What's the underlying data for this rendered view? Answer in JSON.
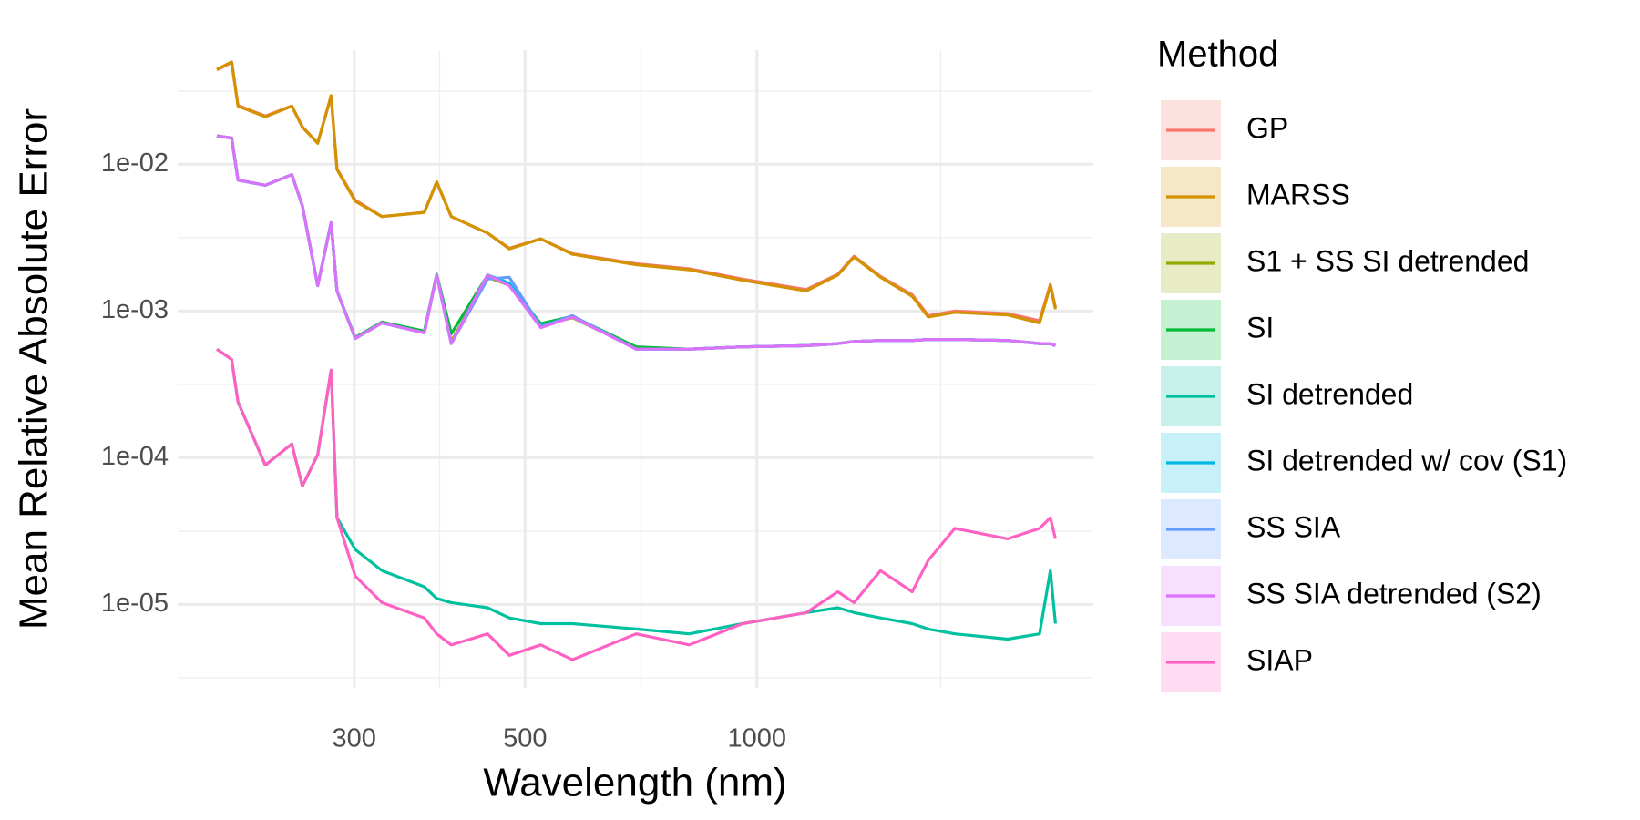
{
  "chart_data": {
    "type": "line",
    "x_label": "Wavelength (nm)",
    "y_label": "Mean Relative Absolute Error",
    "legend_title": "Method",
    "legend": "right",
    "xscale": "log",
    "yscale": "log",
    "grid": true,
    "xlim": [
      177,
      2734
    ],
    "ylim": [
      2.7e-06,
      0.06
    ],
    "xticks": [
      300,
      500,
      1000
    ],
    "xminor": [
      387.3,
      707.1,
      1732.1
    ],
    "yticks": [
      {
        "value": 1e-05,
        "label": "1e-05"
      },
      {
        "value": 0.0001,
        "label": "1e-04"
      },
      {
        "value": 0.001,
        "label": "1e-03"
      },
      {
        "value": 0.01,
        "label": "1e-02"
      }
    ],
    "yminor": [
      3.16e-06,
      3.16e-05,
      0.000316,
      0.00316,
      0.0316
    ],
    "x": [
      199,
      208,
      212,
      230,
      249,
      257,
      269,
      280,
      285,
      301,
      326,
      370,
      384,
      401,
      447,
      477,
      524,
      576,
      697,
      817,
      958,
      1159,
      1274,
      1337,
      1447,
      1591,
      1669,
      1807,
      2117,
      2328,
      2404,
      2441
    ],
    "series": [
      {
        "name": "GP",
        "color": "#F8766D",
        "values": [
          0.044,
          0.0495,
          0.0252,
          0.0213,
          0.025,
          0.018,
          0.014,
          0.029,
          0.0093,
          0.0057,
          0.0044,
          0.0047,
          0.0075,
          0.0044,
          0.0034,
          0.00268,
          0.0031,
          0.00246,
          0.0021,
          0.00194,
          0.00165,
          0.0014,
          0.00178,
          0.00236,
          0.00172,
          0.00129,
          0.00093,
          0.001,
          0.00096,
          0.00086,
          0.00152,
          0.00106
        ]
      },
      {
        "name": "MARSS",
        "color": "#D39200",
        "values": [
          0.0444,
          0.0499,
          0.0249,
          0.0211,
          0.0249,
          0.0179,
          0.0139,
          0.0294,
          0.0092,
          0.0056,
          0.0044,
          0.0047,
          0.0076,
          0.0044,
          0.0034,
          0.00265,
          0.0031,
          0.00244,
          0.00207,
          0.00191,
          0.00162,
          0.00137,
          0.00176,
          0.00233,
          0.0017,
          0.00126,
          0.00091,
          0.00098,
          0.00094,
          0.00083,
          0.00149,
          0.00103
        ]
      },
      {
        "name": "S1 + SS SI detrended",
        "color": "#93AA00",
        "values": [
          0.0156,
          0.0151,
          0.0078,
          0.0072,
          0.0085,
          0.0052,
          0.00149,
          0.004,
          0.00137,
          0.00065,
          0.00083,
          0.00072,
          0.00176,
          0.00062,
          0.0017,
          0.0015,
          0.0008,
          0.0009,
          0.00056,
          0.00055,
          0.00057,
          0.00058,
          0.0006,
          0.00062,
          0.00063,
          0.00063,
          0.00064,
          0.00064,
          0.00063,
          0.0006,
          0.0006,
          0.00058
        ]
      },
      {
        "name": "SI",
        "color": "#00BA38",
        "values": [
          0.0156,
          0.0151,
          0.0078,
          0.0072,
          0.0085,
          0.0052,
          0.00149,
          0.004,
          0.00137,
          0.00066,
          0.00084,
          0.00073,
          0.00178,
          0.0007,
          0.00175,
          0.00152,
          0.00082,
          0.00092,
          0.00057,
          0.00055,
          0.00057,
          0.00058,
          0.0006,
          0.00062,
          0.00063,
          0.00063,
          0.00064,
          0.00064,
          0.00063,
          0.0006,
          0.0006,
          0.00058
        ]
      },
      {
        "name": "SI detrended",
        "color": "#00C19F",
        "values": [
          0.00055,
          0.000467,
          0.00024,
          8.9e-05,
          0.000124,
          6.4e-05,
          0.000105,
          0.000395,
          3.9e-05,
          2.37e-05,
          1.7e-05,
          1.32e-05,
          1.1e-05,
          1.03e-05,
          9.5e-06,
          8.1e-06,
          7.4e-06,
          7.4e-06,
          6.8e-06,
          6.3e-06,
          7.4e-06,
          8.8e-06,
          9.5e-06,
          8.8e-06,
          8.1e-06,
          7.4e-06,
          6.8e-06,
          6.3e-06,
          5.8e-06,
          6.3e-06,
          1.7e-05,
          7.4e-06
        ]
      },
      {
        "name": "SI detrended w/ cov (S1)",
        "color": "#00B9E3",
        "values": [
          0.0156,
          0.0151,
          0.0078,
          0.0072,
          0.0085,
          0.0052,
          0.00149,
          0.004,
          0.00137,
          0.00065,
          0.00083,
          0.00071,
          0.00176,
          0.0006,
          0.00176,
          0.00155,
          0.00079,
          0.00092,
          0.00055,
          0.00055,
          0.00057,
          0.00058,
          0.0006,
          0.00062,
          0.00063,
          0.00063,
          0.00064,
          0.00064,
          0.00063,
          0.0006,
          0.0006,
          0.00058
        ]
      },
      {
        "name": "SS SIA",
        "color": "#619CFF",
        "values": [
          0.0156,
          0.0151,
          0.0078,
          0.0072,
          0.0085,
          0.0052,
          0.00149,
          0.004,
          0.00137,
          0.00065,
          0.00083,
          0.00071,
          0.00176,
          0.0006,
          0.00165,
          0.0017,
          0.00078,
          0.00093,
          0.00055,
          0.00055,
          0.00057,
          0.00058,
          0.0006,
          0.00062,
          0.00063,
          0.00063,
          0.00064,
          0.00064,
          0.00063,
          0.0006,
          0.0006,
          0.00058
        ]
      },
      {
        "name": "SS SIA detrended (S2)",
        "color": "#DB72FB",
        "values": [
          0.0156,
          0.0151,
          0.0078,
          0.0072,
          0.0085,
          0.0052,
          0.00149,
          0.004,
          0.00137,
          0.00065,
          0.00083,
          0.00071,
          0.00176,
          0.0006,
          0.00176,
          0.00149,
          0.00077,
          0.00091,
          0.00055,
          0.00055,
          0.00057,
          0.00058,
          0.0006,
          0.00062,
          0.00063,
          0.00063,
          0.00064,
          0.00064,
          0.00063,
          0.0006,
          0.0006,
          0.00058
        ]
      },
      {
        "name": "SIAP",
        "color": "#FF61C3",
        "values": [
          0.00055,
          0.000467,
          0.00024,
          8.9e-05,
          0.000124,
          6.4e-05,
          0.000105,
          0.000395,
          3.9e-05,
          1.56e-05,
          1.03e-05,
          8.1e-06,
          6.3e-06,
          5.3e-06,
          6.3e-06,
          4.5e-06,
          5.3e-06,
          4.2e-06,
          6.3e-06,
          5.3e-06,
          7.4e-06,
          8.8e-06,
          1.22e-05,
          1.03e-05,
          1.7e-05,
          1.22e-05,
          2e-05,
          3.3e-05,
          2.8e-05,
          3.3e-05,
          3.9e-05,
          2.8e-05
        ]
      }
    ]
  }
}
